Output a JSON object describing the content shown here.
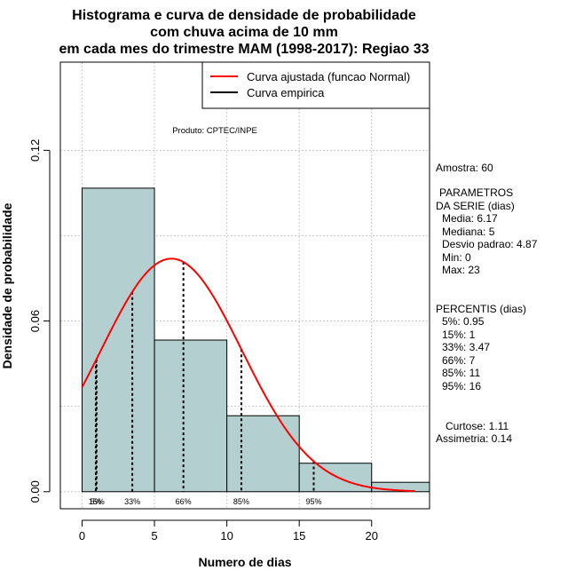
{
  "chart_data": {
    "type": "histogram",
    "title": [
      "Histograma e curva de densidade de probabilidade",
      "com chuva acima de 10 mm",
      "em cada mes do trimestre MAM (1998-2017): Regiao 33"
    ],
    "xlabel": "Numero de dias",
    "ylabel": "Densidade de probabilidade",
    "xlim": [
      -1.5,
      24
    ],
    "ylim": [
      -0.006,
      0.151
    ],
    "xticks": [
      0,
      5,
      10,
      15,
      20
    ],
    "yticks": [
      0.0,
      0.06,
      0.12
    ],
    "ytick_labels": [
      "0.00",
      "0.06",
      "0.12"
    ],
    "grid": true,
    "bins": [
      {
        "start": 0,
        "end": 5,
        "density": 0.1067
      },
      {
        "start": 5,
        "end": 10,
        "density": 0.0533
      },
      {
        "start": 10,
        "end": 15,
        "density": 0.0267
      },
      {
        "start": 15,
        "end": 20,
        "density": 0.01
      },
      {
        "start": 20,
        "end": 25,
        "density": 0.0033
      }
    ],
    "normal_curve": {
      "name": "Curva ajustada (funcao Normal)",
      "mean": 6.17,
      "sd": 4.87,
      "x_range": [
        0,
        23
      ],
      "color": "#ff0000"
    },
    "empirical_curve": {
      "name": "Curva empirica",
      "color": "#000000"
    },
    "percentile_lines": [
      {
        "label": "5%",
        "x": 0.95
      },
      {
        "label": "15%",
        "x": 1
      },
      {
        "label": "33%",
        "x": 3.47
      },
      {
        "label": "66%",
        "x": 7
      },
      {
        "label": "85%",
        "x": 11
      },
      {
        "label": "95%",
        "x": 16
      }
    ],
    "annotation": "Produto: CPTEC/INPE",
    "legend_position": "top-right",
    "bar_color": "#b4cfcf"
  },
  "stats_panel": {
    "amostra": "Amostra: 60",
    "parametros_title": "PARAMETROS",
    "parametros_sub": "DA SERIE (dias)",
    "media": "Media: 6.17",
    "mediana": "Mediana: 5",
    "desvio": "Desvio padrao: 4.87",
    "min": "Min: 0",
    "max": "Max: 23",
    "percentis_title": "PERCENTIS (dias)",
    "p5": "5%: 0.95",
    "p15": "15%: 1",
    "p33": "33%: 3.47",
    "p66": "66%: 7",
    "p85": "85%: 11",
    "p95": "95%: 16",
    "curtose": "Curtose: 1.11",
    "assimetria": "Assimetria: 0.14"
  }
}
